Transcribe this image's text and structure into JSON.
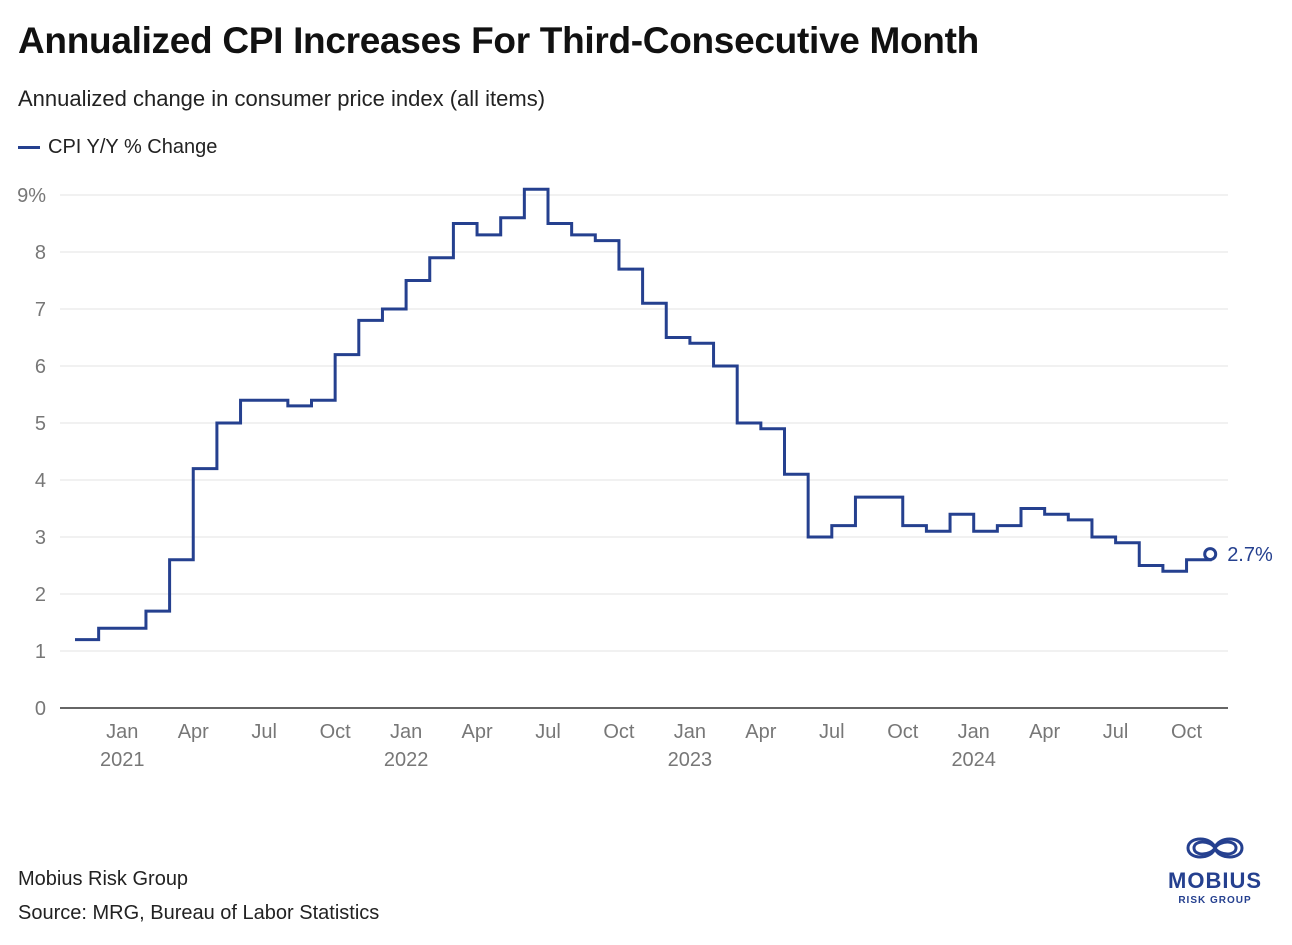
{
  "header": {
    "title": "Annualized CPI Increases For Third-Consecutive Month",
    "subtitle": "Annualized change in consumer price index (all items)"
  },
  "legend": {
    "label": "CPI Y/Y % Change"
  },
  "footer": {
    "organization": "Mobius Risk Group",
    "source": "Source: MRG, Bureau of Labor Statistics"
  },
  "logo": {
    "name": "MOBIUS",
    "tagline": "RISK GROUP",
    "icon": "mobius-knot-icon"
  },
  "colors": {
    "series": "#25408f",
    "grid": "#e3e3e3",
    "axis_text": "#777777",
    "axis_line": "#333333"
  },
  "chart_data": {
    "type": "line",
    "step": true,
    "title": "Annualized CPI Increases For Third-Consecutive Month",
    "subtitle": "Annualized change in consumer price index (all items)",
    "xlabel": "",
    "ylabel": "",
    "ylim": [
      0,
      9
    ],
    "y_ticks": [
      0,
      1,
      2,
      3,
      4,
      5,
      6,
      7,
      8,
      9
    ],
    "y_tick_labels": [
      "0",
      "1",
      "2",
      "3",
      "4",
      "5",
      "6",
      "7",
      "8",
      "9%"
    ],
    "grid": true,
    "legend_position": "top-left",
    "x_ticks": [
      {
        "date": "2021-01",
        "label": "Jan",
        "year": "2021"
      },
      {
        "date": "2021-04",
        "label": "Apr",
        "year": ""
      },
      {
        "date": "2021-07",
        "label": "Jul",
        "year": ""
      },
      {
        "date": "2021-10",
        "label": "Oct",
        "year": ""
      },
      {
        "date": "2022-01",
        "label": "Jan",
        "year": "2022"
      },
      {
        "date": "2022-04",
        "label": "Apr",
        "year": ""
      },
      {
        "date": "2022-07",
        "label": "Jul",
        "year": ""
      },
      {
        "date": "2022-10",
        "label": "Oct",
        "year": ""
      },
      {
        "date": "2023-01",
        "label": "Jan",
        "year": "2023"
      },
      {
        "date": "2023-04",
        "label": "Apr",
        "year": ""
      },
      {
        "date": "2023-07",
        "label": "Jul",
        "year": ""
      },
      {
        "date": "2023-10",
        "label": "Oct",
        "year": ""
      },
      {
        "date": "2024-01",
        "label": "Jan",
        "year": "2024"
      },
      {
        "date": "2024-04",
        "label": "Apr",
        "year": ""
      },
      {
        "date": "2024-07",
        "label": "Jul",
        "year": ""
      },
      {
        "date": "2024-10",
        "label": "Oct",
        "year": ""
      }
    ],
    "series": [
      {
        "name": "CPI Y/Y % Change",
        "color": "#25408f",
        "end_label": "2.7%",
        "points": [
          {
            "x": "2020-11",
            "y": 1.2
          },
          {
            "x": "2020-12",
            "y": 1.4
          },
          {
            "x": "2021-01",
            "y": 1.4
          },
          {
            "x": "2021-02",
            "y": 1.7
          },
          {
            "x": "2021-03",
            "y": 2.6
          },
          {
            "x": "2021-04",
            "y": 4.2
          },
          {
            "x": "2021-05",
            "y": 5.0
          },
          {
            "x": "2021-06",
            "y": 5.4
          },
          {
            "x": "2021-07",
            "y": 5.4
          },
          {
            "x": "2021-08",
            "y": 5.3
          },
          {
            "x": "2021-09",
            "y": 5.4
          },
          {
            "x": "2021-10",
            "y": 6.2
          },
          {
            "x": "2021-11",
            "y": 6.8
          },
          {
            "x": "2021-12",
            "y": 7.0
          },
          {
            "x": "2022-01",
            "y": 7.5
          },
          {
            "x": "2022-02",
            "y": 7.9
          },
          {
            "x": "2022-03",
            "y": 8.5
          },
          {
            "x": "2022-04",
            "y": 8.3
          },
          {
            "x": "2022-05",
            "y": 8.6
          },
          {
            "x": "2022-06",
            "y": 9.1
          },
          {
            "x": "2022-07",
            "y": 8.5
          },
          {
            "x": "2022-08",
            "y": 8.3
          },
          {
            "x": "2022-09",
            "y": 8.2
          },
          {
            "x": "2022-10",
            "y": 7.7
          },
          {
            "x": "2022-11",
            "y": 7.1
          },
          {
            "x": "2022-12",
            "y": 6.5
          },
          {
            "x": "2023-01",
            "y": 6.4
          },
          {
            "x": "2023-02",
            "y": 6.0
          },
          {
            "x": "2023-03",
            "y": 5.0
          },
          {
            "x": "2023-04",
            "y": 4.9
          },
          {
            "x": "2023-05",
            "y": 4.1
          },
          {
            "x": "2023-06",
            "y": 3.0
          },
          {
            "x": "2023-07",
            "y": 3.2
          },
          {
            "x": "2023-08",
            "y": 3.7
          },
          {
            "x": "2023-09",
            "y": 3.7
          },
          {
            "x": "2023-10",
            "y": 3.2
          },
          {
            "x": "2023-11",
            "y": 3.1
          },
          {
            "x": "2023-12",
            "y": 3.4
          },
          {
            "x": "2024-01",
            "y": 3.1
          },
          {
            "x": "2024-02",
            "y": 3.2
          },
          {
            "x": "2024-03",
            "y": 3.5
          },
          {
            "x": "2024-04",
            "y": 3.4
          },
          {
            "x": "2024-05",
            "y": 3.3
          },
          {
            "x": "2024-06",
            "y": 3.0
          },
          {
            "x": "2024-07",
            "y": 2.9
          },
          {
            "x": "2024-08",
            "y": 2.5
          },
          {
            "x": "2024-09",
            "y": 2.4
          },
          {
            "x": "2024-10",
            "y": 2.6
          },
          {
            "x": "2024-11",
            "y": 2.7
          }
        ]
      }
    ]
  }
}
